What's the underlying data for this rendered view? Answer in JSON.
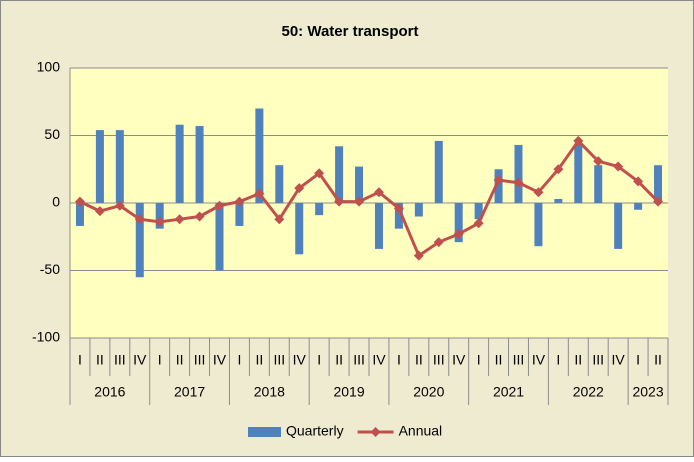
{
  "chart_data": {
    "type": "bar_line",
    "title": "50: Water transport",
    "groups": [
      {
        "label": "2016",
        "categories": [
          "I",
          "II",
          "III",
          "IV"
        ]
      },
      {
        "label": "2017",
        "categories": [
          "I",
          "II",
          "III",
          "IV"
        ]
      },
      {
        "label": "2018",
        "categories": [
          "I",
          "II",
          "III",
          "IV"
        ]
      },
      {
        "label": "2019",
        "categories": [
          "I",
          "II",
          "III",
          "IV"
        ]
      },
      {
        "label": "2020",
        "categories": [
          "I",
          "II",
          "III",
          "IV"
        ]
      },
      {
        "label": "2021",
        "categories": [
          "I",
          "II",
          "III",
          "IV"
        ]
      },
      {
        "label": "2022",
        "categories": [
          "I",
          "II",
          "III",
          "IV"
        ]
      },
      {
        "label": "2023",
        "categories": [
          "I",
          "II"
        ]
      }
    ],
    "series": [
      {
        "name": "Quarterly",
        "type": "bar",
        "color": "#4f81bd",
        "values": [
          -17,
          54,
          54,
          -55,
          -19,
          58,
          57,
          -50,
          -17,
          70,
          28,
          -38,
          -9,
          42,
          27,
          -34,
          -19,
          -10,
          46,
          -29,
          -12,
          25,
          43,
          -32,
          3,
          44,
          28,
          -34,
          -5,
          28
        ]
      },
      {
        "name": "Annual",
        "type": "line",
        "color": "#c0504d",
        "values": [
          1,
          -6,
          -2,
          -12,
          -14,
          -12,
          -10,
          -2,
          1,
          7,
          -12,
          11,
          22,
          1,
          1,
          8,
          -4,
          -39,
          -29,
          -23,
          -15,
          17,
          15,
          8,
          25,
          46,
          31,
          27,
          16,
          1
        ]
      }
    ],
    "ylim": [
      -100,
      100
    ],
    "yticks": [
      -100,
      -50,
      0,
      50,
      100
    ],
    "grid": true,
    "legend": "bottom"
  }
}
